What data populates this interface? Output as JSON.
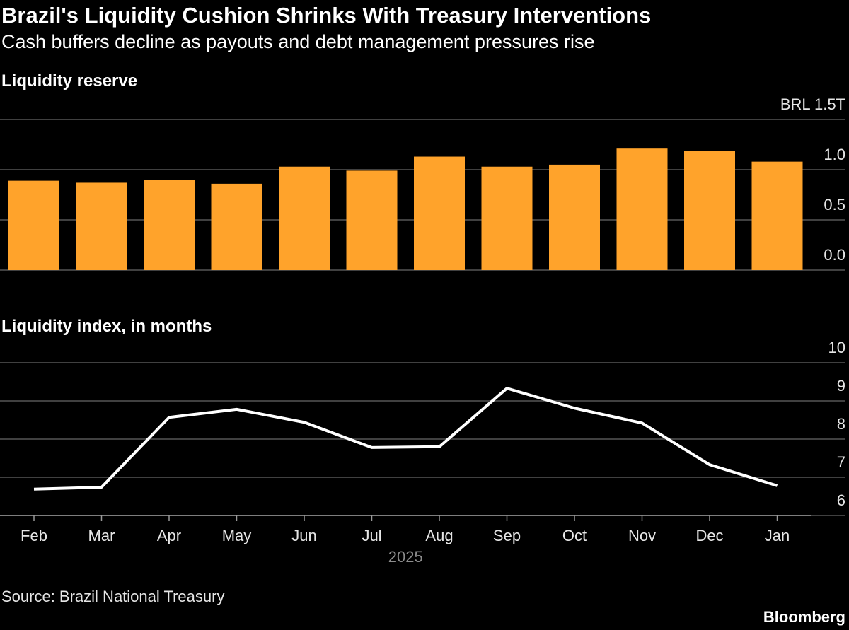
{
  "title": "Brazil's Liquidity Cushion Shrinks With Treasury Interventions",
  "subtitle": "Cash buffers decline as payouts and debt management pressures rise",
  "source": "Source: Brazil National Treasury",
  "credit": "Bloomberg",
  "chart_data": [
    {
      "type": "bar",
      "title": "Liquidity reserve",
      "color": "#ffa32b",
      "values": [
        0.89,
        0.87,
        0.9,
        0.86,
        1.03,
        0.99,
        1.13,
        1.03,
        1.05,
        1.21,
        1.19,
        1.08
      ],
      "ylim": [
        0,
        1.5
      ],
      "yticks": [
        {
          "value": 0,
          "label": "0.0"
        },
        0.5,
        {
          "value": 1,
          "label": "1.0"
        },
        {
          "value": 1.5,
          "label": "BRL 1.5T"
        }
      ],
      "grid": true
    },
    {
      "type": "line",
      "title": "Liquidity index, in months",
      "color": "#ffffff",
      "categories": [
        "Feb",
        "Mar",
        "Apr",
        "May",
        "Jun",
        "Jul",
        "Aug",
        "Sep",
        "Oct",
        "Nov",
        "Dec",
        "Jan"
      ],
      "xlabel": "2025",
      "values": [
        6.69,
        6.74,
        8.57,
        8.78,
        8.44,
        7.78,
        7.8,
        9.33,
        8.81,
        8.42,
        7.33,
        6.78
      ],
      "ylim": [
        6,
        10
      ],
      "yticks": [
        6,
        7,
        8,
        9,
        10
      ],
      "grid": true
    }
  ]
}
